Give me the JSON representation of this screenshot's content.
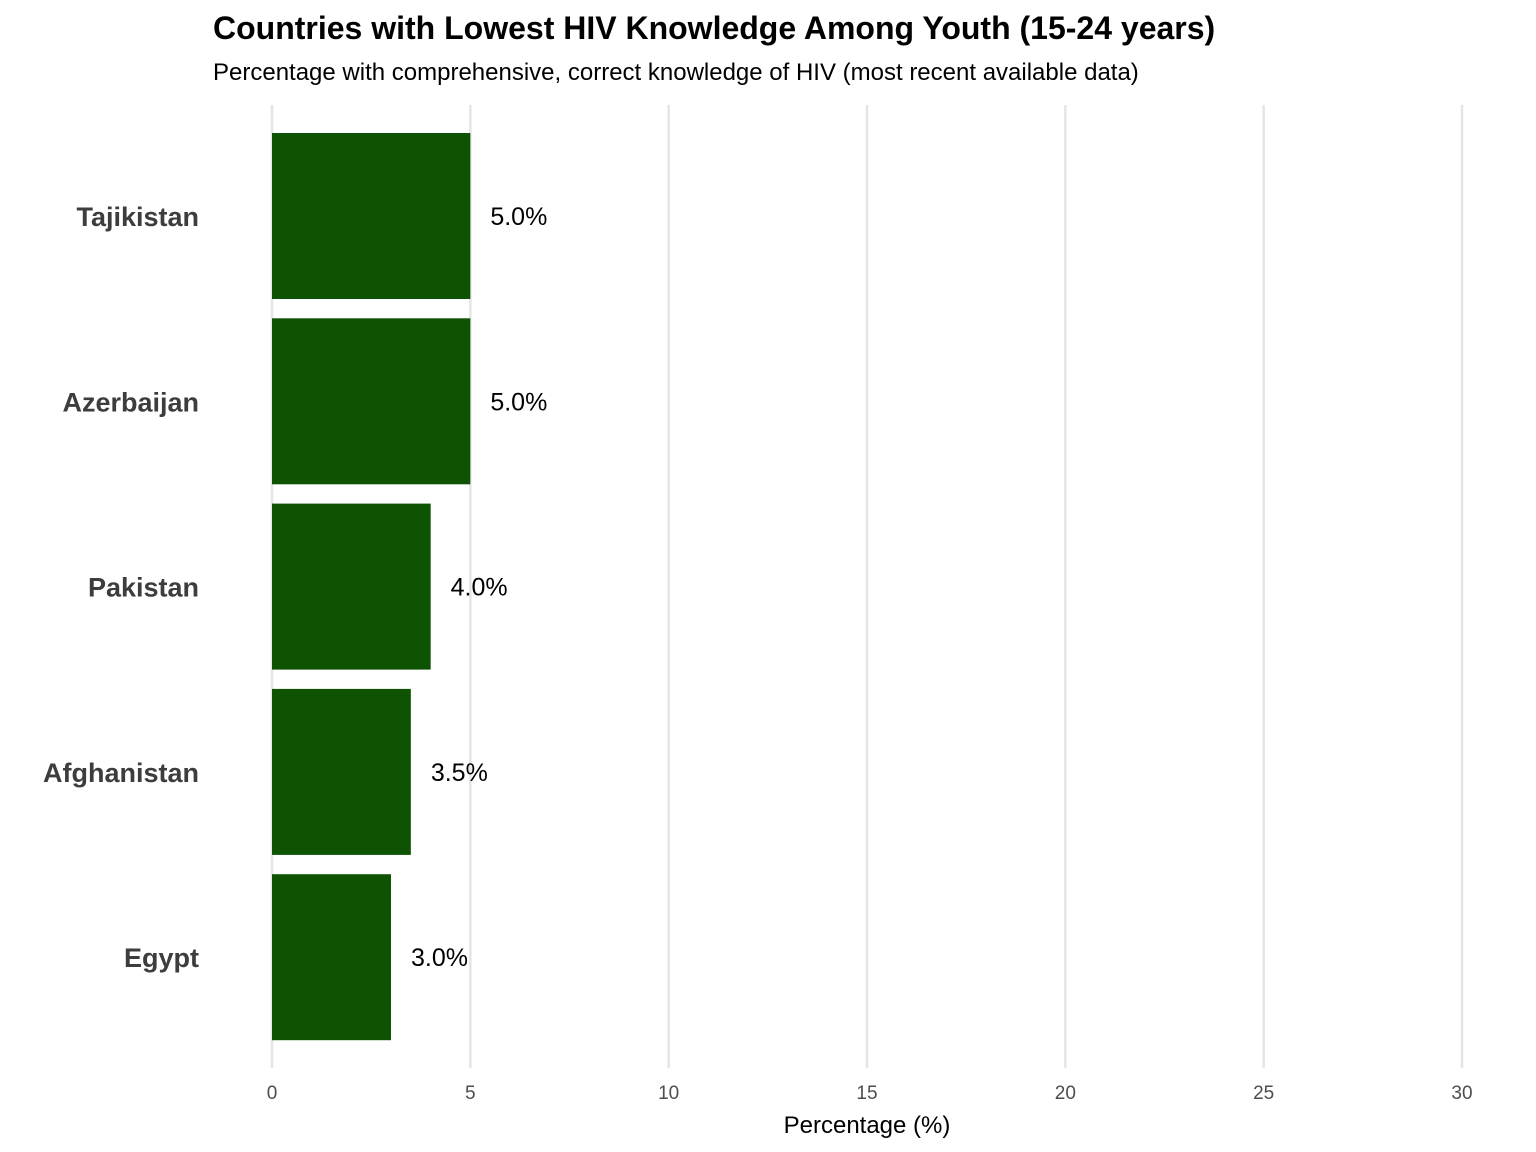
{
  "chart_data": {
    "type": "bar",
    "orientation": "horizontal",
    "title": "Countries with Lowest HIV Knowledge Among Youth (15-24 years)",
    "subtitle": "Percentage with comprehensive, correct knowledge of HIV (most recent available data)",
    "xlabel": "Percentage (%)",
    "ylabel": "",
    "categories": [
      "Tajikistan",
      "Azerbaijan",
      "Pakistan",
      "Afghanistan",
      "Egypt"
    ],
    "values": [
      5.0,
      5.0,
      4.0,
      3.5,
      3.0
    ],
    "value_labels": [
      "5.0%",
      "5.0%",
      "4.0%",
      "3.5%",
      "3.0%"
    ],
    "xlim": [
      0,
      30
    ],
    "xticks": [
      0,
      5,
      10,
      15,
      20,
      25,
      30
    ],
    "xtick_labels": [
      "0",
      "5",
      "10",
      "15",
      "20",
      "25",
      "30"
    ],
    "grid": "vertical major",
    "legend": "none",
    "bar_color": "#0d5302",
    "grid_color": "#e5e5e5"
  }
}
